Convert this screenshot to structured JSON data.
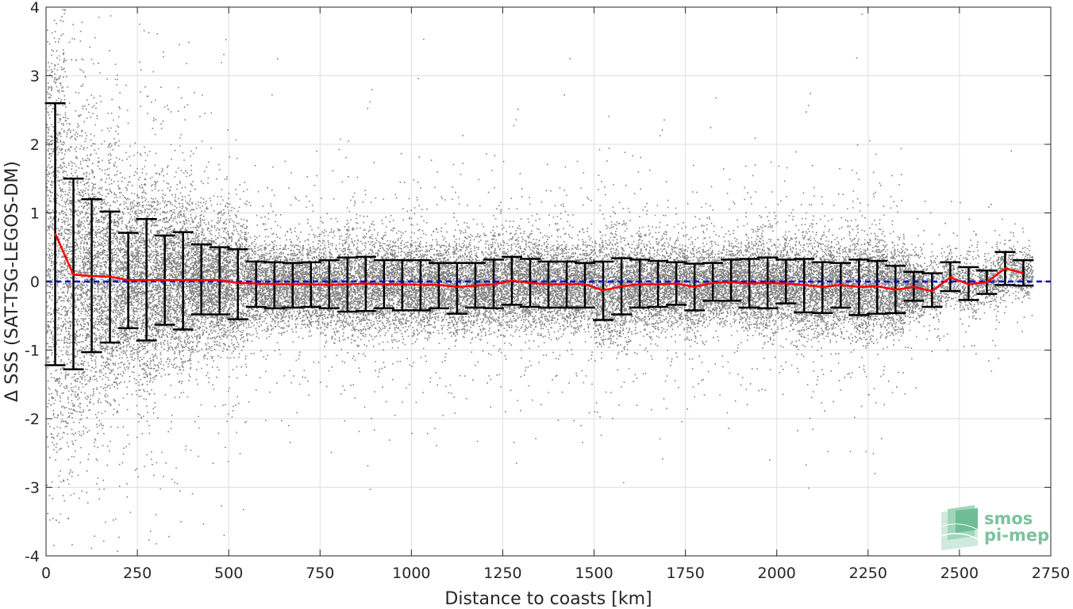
{
  "chart_data": {
    "type": "scatter",
    "xlabel": "Distance to coasts [km]",
    "ylabel": "Δ SSS (SAT-TSG-LEGOS-DM)",
    "xlim": [
      0,
      2750
    ],
    "ylim": [
      -4,
      4
    ],
    "xticks": [
      0,
      250,
      500,
      750,
      1000,
      1250,
      1500,
      1750,
      2000,
      2250,
      2500,
      2750
    ],
    "yticks": [
      -4,
      -3,
      -2,
      -1,
      0,
      1,
      2,
      3,
      4
    ],
    "grid": true,
    "reference_line": {
      "y": 0,
      "color": "#0000cc",
      "style": "dashed"
    },
    "scatter_color": "#808080",
    "mean_color": "#ff0000",
    "errorbar_color": "#000000",
    "bins": {
      "x": [
        25,
        75,
        125,
        175,
        225,
        275,
        325,
        375,
        425,
        475,
        525,
        575,
        625,
        675,
        725,
        775,
        825,
        875,
        925,
        975,
        1025,
        1075,
        1125,
        1175,
        1225,
        1275,
        1325,
        1375,
        1425,
        1475,
        1525,
        1575,
        1625,
        1675,
        1725,
        1775,
        1825,
        1875,
        1925,
        1975,
        2025,
        2075,
        2125,
        2175,
        2225,
        2275,
        2325,
        2375,
        2425,
        2475,
        2525,
        2575,
        2625,
        2675
      ],
      "mean": [
        0.7,
        0.1,
        0.08,
        0.07,
        0.02,
        0.02,
        0.02,
        0.02,
        0.02,
        0.02,
        -0.02,
        -0.03,
        -0.04,
        -0.04,
        -0.04,
        -0.05,
        -0.04,
        -0.03,
        -0.04,
        -0.04,
        -0.05,
        -0.05,
        -0.08,
        -0.06,
        -0.04,
        0.01,
        -0.02,
        -0.04,
        -0.04,
        -0.04,
        -0.13,
        -0.07,
        -0.04,
        -0.04,
        -0.03,
        -0.08,
        -0.02,
        -0.01,
        -0.03,
        -0.02,
        -0.03,
        -0.05,
        -0.08,
        -0.05,
        -0.08,
        -0.07,
        -0.12,
        -0.08,
        -0.14,
        0.06,
        -0.04,
        -0.01,
        0.19,
        0.12
      ],
      "upper": [
        2.6,
        1.5,
        1.2,
        1.02,
        0.71,
        0.91,
        0.67,
        0.72,
        0.54,
        0.5,
        0.47,
        0.29,
        0.28,
        0.27,
        0.28,
        0.31,
        0.35,
        0.36,
        0.31,
        0.31,
        0.31,
        0.27,
        0.27,
        0.27,
        0.32,
        0.36,
        0.33,
        0.29,
        0.29,
        0.27,
        0.29,
        0.34,
        0.32,
        0.3,
        0.28,
        0.26,
        0.27,
        0.32,
        0.33,
        0.35,
        0.32,
        0.33,
        0.28,
        0.27,
        0.32,
        0.3,
        0.23,
        0.14,
        0.12,
        0.28,
        0.21,
        0.16,
        0.43,
        0.31
      ],
      "lower": [
        -1.22,
        -1.28,
        -1.03,
        -0.89,
        -0.68,
        -0.86,
        -0.63,
        -0.7,
        -0.48,
        -0.48,
        -0.55,
        -0.37,
        -0.39,
        -0.38,
        -0.37,
        -0.39,
        -0.44,
        -0.43,
        -0.39,
        -0.42,
        -0.42,
        -0.39,
        -0.47,
        -0.38,
        -0.39,
        -0.34,
        -0.37,
        -0.38,
        -0.38,
        -0.38,
        -0.56,
        -0.48,
        -0.38,
        -0.37,
        -0.34,
        -0.42,
        -0.28,
        -0.28,
        -0.38,
        -0.39,
        -0.32,
        -0.45,
        -0.46,
        -0.38,
        -0.49,
        -0.47,
        -0.46,
        -0.28,
        -0.37,
        -0.14,
        -0.27,
        -0.18,
        -0.05,
        -0.06
      ]
    }
  },
  "logo": {
    "line1": "smos",
    "line2": "pi-mep",
    "color": "#7cc2a0"
  }
}
